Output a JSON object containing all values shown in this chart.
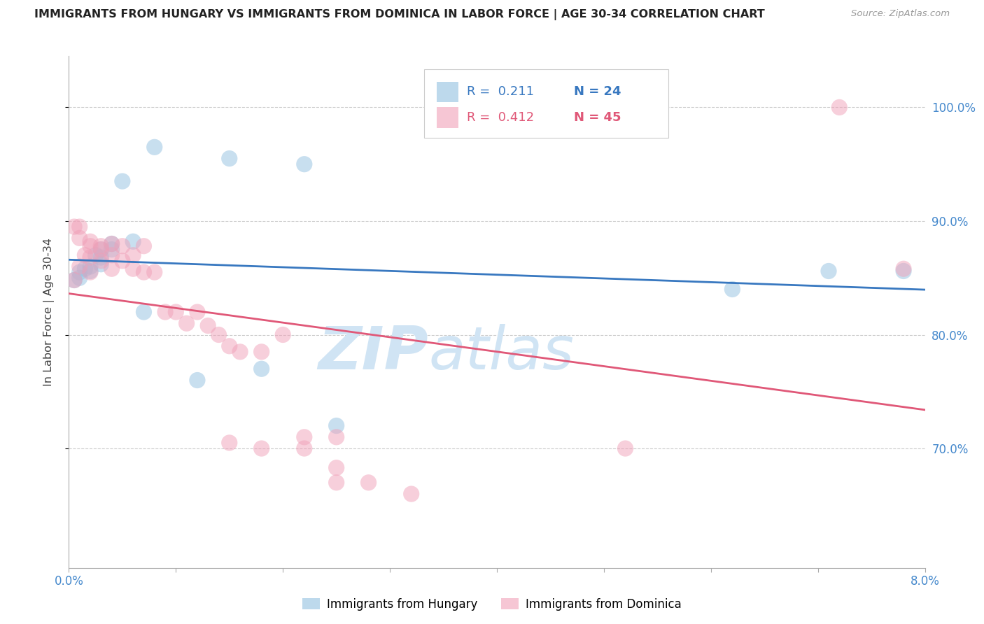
{
  "title": "IMMIGRANTS FROM HUNGARY VS IMMIGRANTS FROM DOMINICA IN LABOR FORCE | AGE 30-34 CORRELATION CHART",
  "source": "Source: ZipAtlas.com",
  "ylabel": "In Labor Force | Age 30-34",
  "r_blue": 0.211,
  "n_blue": 24,
  "r_pink": 0.412,
  "n_pink": 45,
  "blue_color": "#92c0e0",
  "pink_color": "#f0a0b8",
  "blue_line_color": "#3878c0",
  "pink_line_color": "#e05878",
  "watermark_zip": "ZIP",
  "watermark_atlas": "atlas",
  "watermark_color": "#d0e4f4",
  "axis_color": "#4488cc",
  "xlim": [
    0.0,
    0.08
  ],
  "ylim": [
    0.595,
    1.045
  ],
  "yticks": [
    0.7,
    0.8,
    0.9,
    1.0
  ],
  "ytick_labels": [
    "70.0%",
    "80.0%",
    "90.0%",
    "100.0%"
  ],
  "xtick_show": [
    0.0,
    0.08
  ],
  "xtick_labels": [
    "0.0%",
    "8.0%"
  ],
  "blue_x": [
    0.0005,
    0.001,
    0.001,
    0.0015,
    0.002,
    0.002,
    0.0025,
    0.003,
    0.003,
    0.003,
    0.004,
    0.004,
    0.005,
    0.006,
    0.007,
    0.008,
    0.012,
    0.015,
    0.018,
    0.022,
    0.025,
    0.062,
    0.071,
    0.078
  ],
  "blue_y": [
    0.848,
    0.855,
    0.85,
    0.858,
    0.856,
    0.86,
    0.87,
    0.862,
    0.868,
    0.875,
    0.875,
    0.88,
    0.935,
    0.882,
    0.82,
    0.965,
    0.76,
    0.955,
    0.77,
    0.95,
    0.72,
    0.84,
    0.856,
    0.856
  ],
  "pink_x": [
    0.0005,
    0.0005,
    0.001,
    0.001,
    0.001,
    0.0015,
    0.002,
    0.002,
    0.002,
    0.002,
    0.003,
    0.003,
    0.003,
    0.004,
    0.004,
    0.004,
    0.005,
    0.005,
    0.006,
    0.006,
    0.007,
    0.007,
    0.008,
    0.009,
    0.01,
    0.011,
    0.012,
    0.013,
    0.014,
    0.015,
    0.016,
    0.018,
    0.02,
    0.022,
    0.025,
    0.015,
    0.018,
    0.022,
    0.025,
    0.025,
    0.028,
    0.032,
    0.052,
    0.072,
    0.078
  ],
  "pink_y": [
    0.848,
    0.895,
    0.885,
    0.895,
    0.86,
    0.87,
    0.878,
    0.868,
    0.855,
    0.882,
    0.865,
    0.878,
    0.875,
    0.858,
    0.87,
    0.88,
    0.865,
    0.878,
    0.858,
    0.87,
    0.878,
    0.855,
    0.855,
    0.82,
    0.82,
    0.81,
    0.82,
    0.808,
    0.8,
    0.79,
    0.785,
    0.785,
    0.8,
    0.71,
    0.67,
    0.705,
    0.7,
    0.7,
    0.71,
    0.683,
    0.67,
    0.66,
    0.7,
    1.0,
    0.858
  ]
}
